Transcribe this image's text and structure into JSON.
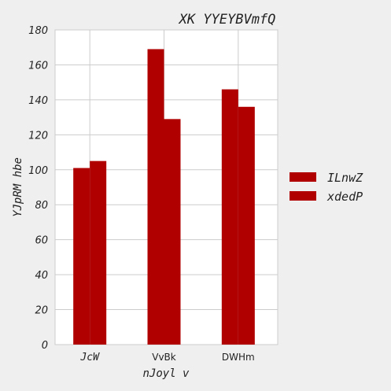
{
  "chart_data": {
    "type": "bar",
    "title": "XK YYEYBVmfQ",
    "xlabel": "nJoyl v",
    "ylabel": "YJpRM hbe",
    "categories": [
      "JcW",
      "VvBk",
      "DWHm"
    ],
    "series": [
      {
        "name": "ILnwZ",
        "values": [
          101,
          169,
          146
        ]
      },
      {
        "name": "xdedP",
        "values": [
          105,
          129,
          136
        ]
      }
    ],
    "ylim": [
      0,
      180
    ],
    "yticks": [
      0,
      20,
      40,
      60,
      80,
      100,
      120,
      140,
      160,
      180
    ],
    "grid": true,
    "legend_position": "right",
    "bar_color": "#b00000"
  }
}
